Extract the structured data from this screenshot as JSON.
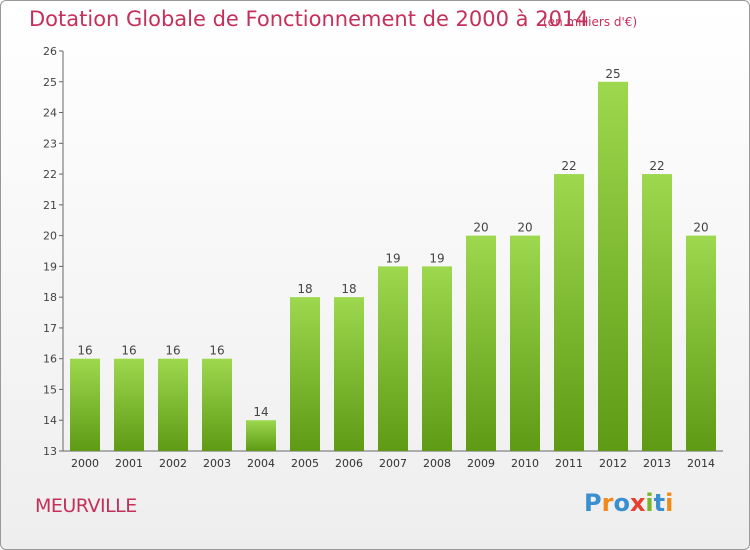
{
  "title": "Dotation Globale de Fonctionnement de 2000 à 2014",
  "subtitle": "(en milliers d'€)",
  "commune": "MEURVILLE",
  "logo": {
    "letters": [
      "P",
      "r",
      "o",
      "x",
      "i",
      "t",
      "i"
    ],
    "colors": [
      "#3a8fd0",
      "#f08a1a",
      "#3a8fd0",
      "#e8402e",
      "#7ab52a",
      "#3a8fd0",
      "#f08a1a"
    ]
  },
  "colors": {
    "bar_top": "#9dd84f",
    "bar_bottom": "#5e9a14",
    "title": "#c5305b"
  },
  "chart_data": {
    "type": "bar",
    "categories": [
      "2000",
      "2001",
      "2002",
      "2003",
      "2004",
      "2005",
      "2006",
      "2007",
      "2008",
      "2009",
      "2010",
      "2011",
      "2012",
      "2013",
      "2014"
    ],
    "values": [
      16,
      16,
      16,
      16,
      14,
      18,
      18,
      19,
      19,
      20,
      20,
      22,
      25,
      22,
      20
    ],
    "data_labels": [
      "16",
      "16",
      "16",
      "16",
      "14",
      "18",
      "18",
      "19",
      "19",
      "20",
      "20",
      "22",
      "25",
      "22",
      "20"
    ],
    "y_ticks": [
      "13",
      "14",
      "15",
      "16",
      "17",
      "18",
      "19",
      "20",
      "21",
      "22",
      "23",
      "24",
      "25",
      "26"
    ],
    "ylim": [
      13,
      26
    ],
    "grid": false,
    "legend": "none"
  }
}
